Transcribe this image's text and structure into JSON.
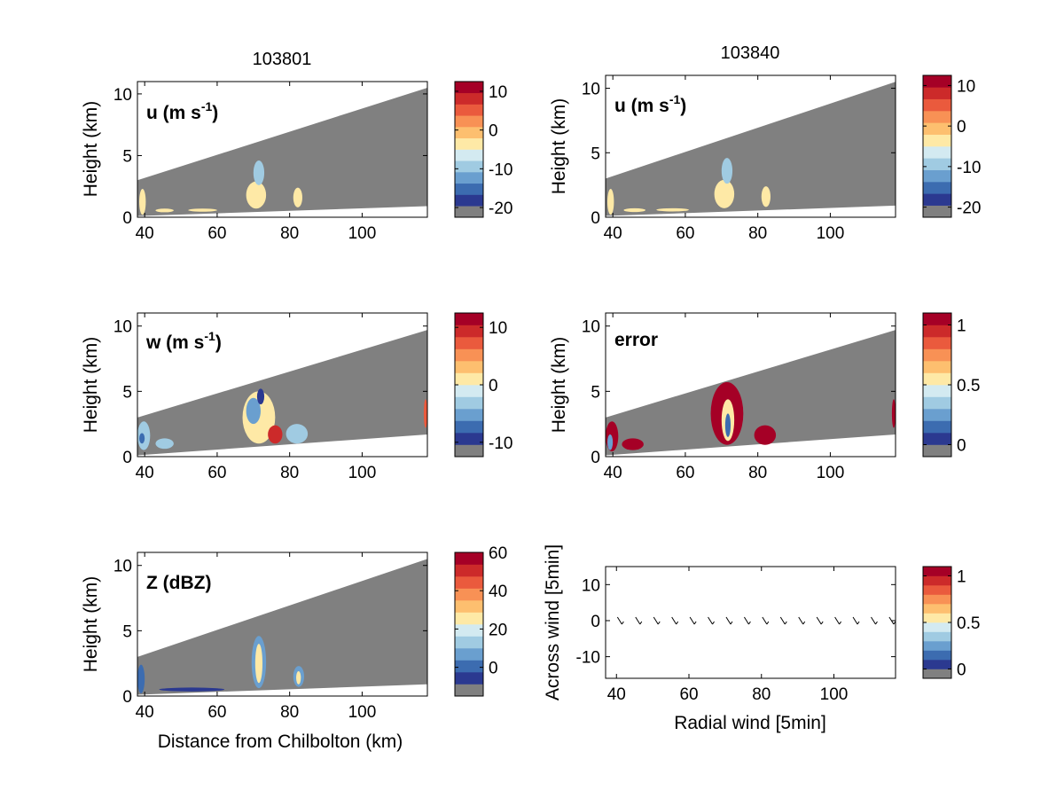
{
  "chart_data": [
    {
      "type": "heatmap",
      "title": "103801",
      "panel_label": "u (m s",
      "panel_label_sup": "-1",
      "panel_label_close": ")",
      "xlabel": "",
      "ylabel": "Height (km)",
      "xlim": [
        38,
        118
      ],
      "ylim": [
        0,
        11
      ],
      "xticks": [
        40,
        60,
        80,
        100
      ],
      "yticks": [
        0,
        5,
        10
      ],
      "beam_top": [
        [
          38,
          3.0
        ],
        [
          118,
          10.5
        ]
      ],
      "beam_bottom": [
        [
          38,
          0.1
        ],
        [
          118,
          0.9
        ]
      ],
      "colorbar": {
        "ticks": [
          10,
          0,
          -10,
          -20
        ],
        "min": -22.5,
        "max": 12.5
      },
      "echoes": [
        {
          "x": 38.5,
          "y": 0.2,
          "w": 1.8,
          "h": 2.1,
          "v": -5
        },
        {
          "x": 43,
          "y": 0.4,
          "w": 5,
          "h": 0.3,
          "v": -5
        },
        {
          "x": 52,
          "y": 0.45,
          "w": 8,
          "h": 0.25,
          "v": -5
        },
        {
          "x": 68,
          "y": 0.7,
          "w": 5.5,
          "h": 2.2,
          "v": -5
        },
        {
          "x": 70,
          "y": 2.6,
          "w": 3,
          "h": 2.0,
          "v": -8
        },
        {
          "x": 81,
          "y": 0.8,
          "w": 2.5,
          "h": 1.6,
          "v": -5
        }
      ]
    },
    {
      "type": "heatmap",
      "title": "103840",
      "panel_label": "u (m s",
      "panel_label_sup": "-1",
      "panel_label_close": ")",
      "xlabel": "",
      "ylabel": "Height (km)",
      "xlim": [
        38,
        118
      ],
      "ylim": [
        0,
        11
      ],
      "xticks": [
        40,
        60,
        80,
        100
      ],
      "yticks": [
        0,
        5,
        10
      ],
      "beam_top": [
        [
          38,
          3.0
        ],
        [
          118,
          10.5
        ]
      ],
      "beam_bottom": [
        [
          38,
          0.1
        ],
        [
          118,
          0.9
        ]
      ],
      "colorbar": {
        "ticks": [
          10,
          0,
          -10,
          -20
        ],
        "min": -22.5,
        "max": 12.5
      },
      "echoes": [
        {
          "x": 38.5,
          "y": 0.2,
          "w": 1.8,
          "h": 2.0,
          "v": -5
        },
        {
          "x": 43,
          "y": 0.4,
          "w": 6,
          "h": 0.3,
          "v": -5
        },
        {
          "x": 52,
          "y": 0.45,
          "w": 9,
          "h": 0.25,
          "v": -5
        },
        {
          "x": 68,
          "y": 0.7,
          "w": 5.5,
          "h": 2.2,
          "v": -5
        },
        {
          "x": 70,
          "y": 2.6,
          "w": 3,
          "h": 2.0,
          "v": -8
        },
        {
          "x": 81,
          "y": 0.8,
          "w": 2.5,
          "h": 1.6,
          "v": -5
        }
      ]
    },
    {
      "type": "heatmap",
      "title": "",
      "panel_label": "w (m s",
      "panel_label_sup": "-1",
      "panel_label_close": ")",
      "xlabel": "",
      "ylabel": "Height (km)",
      "xlim": [
        38,
        118
      ],
      "ylim": [
        0,
        11
      ],
      "xticks": [
        40,
        60,
        80,
        100
      ],
      "yticks": [
        0,
        5,
        10
      ],
      "beam_top": [
        [
          38,
          3.0
        ],
        [
          118,
          9.7
        ]
      ],
      "beam_bottom": [
        [
          38,
          0.1
        ],
        [
          118,
          1.7
        ]
      ],
      "colorbar": {
        "ticks": [
          10,
          0,
          -10
        ],
        "min": -12.5,
        "max": 12.5
      },
      "echoes": [
        {
          "x": 38,
          "y": 0.5,
          "w": 3.5,
          "h": 2.2,
          "v": -3
        },
        {
          "x": 38.5,
          "y": 1.0,
          "w": 1.5,
          "h": 0.8,
          "v": -8
        },
        {
          "x": 43,
          "y": 0.6,
          "w": 5,
          "h": 0.8,
          "v": -4
        },
        {
          "x": 67,
          "y": 1.0,
          "w": 9,
          "h": 4.0,
          "v": 2
        },
        {
          "x": 68,
          "y": 2.5,
          "w": 4,
          "h": 2.0,
          "v": -5
        },
        {
          "x": 71,
          "y": 4.0,
          "w": 2,
          "h": 1.2,
          "v": -10
        },
        {
          "x": 74,
          "y": 1.0,
          "w": 4,
          "h": 1.4,
          "v": 9
        },
        {
          "x": 79,
          "y": 1.0,
          "w": 6,
          "h": 1.5,
          "v": -3
        },
        {
          "x": 117,
          "y": 2.2,
          "w": 1,
          "h": 2.2,
          "v": 8
        }
      ]
    },
    {
      "type": "heatmap",
      "title": "",
      "panel_label": "error",
      "panel_label_sup": "",
      "panel_label_close": "",
      "xlabel": "",
      "ylabel": "Height (km)",
      "xlim": [
        38,
        118
      ],
      "ylim": [
        0,
        11
      ],
      "xticks": [
        40,
        60,
        80,
        100
      ],
      "yticks": [
        0,
        5,
        10
      ],
      "beam_top": [
        [
          38,
          3.0
        ],
        [
          118,
          9.7
        ]
      ],
      "beam_bottom": [
        [
          38,
          0.1
        ],
        [
          118,
          1.7
        ]
      ],
      "colorbar": {
        "ticks": [
          1,
          0.5,
          0
        ],
        "min": -0.1,
        "max": 1.1
      },
      "echoes": [
        {
          "x": 38,
          "y": 0.4,
          "w": 3.5,
          "h": 2.3,
          "v": 1.05
        },
        {
          "x": 38.5,
          "y": 0.5,
          "w": 1.5,
          "h": 1.2,
          "v": 0.2
        },
        {
          "x": 42.5,
          "y": 0.5,
          "w": 6,
          "h": 0.9,
          "v": 1.05
        },
        {
          "x": 67,
          "y": 0.9,
          "w": 9,
          "h": 4.8,
          "v": 1.05
        },
        {
          "x": 70,
          "y": 1.2,
          "w": 3.5,
          "h": 3.2,
          "v": 0.55
        },
        {
          "x": 71,
          "y": 1.5,
          "w": 1.5,
          "h": 1.8,
          "v": 0.15
        },
        {
          "x": 79,
          "y": 0.9,
          "w": 6,
          "h": 1.5,
          "v": 1.05
        },
        {
          "x": 117,
          "y": 2.2,
          "w": 1,
          "h": 2.2,
          "v": 1.05
        }
      ]
    },
    {
      "type": "heatmap",
      "title": "",
      "panel_label": "Z (dBZ)",
      "panel_label_sup": "",
      "panel_label_close": "",
      "xlabel": "Distance from Chilbolton (km)",
      "ylabel": "Height (km)",
      "xlim": [
        38,
        118
      ],
      "ylim": [
        0,
        11
      ],
      "xticks": [
        40,
        60,
        80,
        100
      ],
      "yticks": [
        0,
        5,
        10
      ],
      "beam_top": [
        [
          38,
          3.0
        ],
        [
          118,
          10.5
        ]
      ],
      "beam_bottom": [
        [
          38,
          0.1
        ],
        [
          118,
          0.9
        ]
      ],
      "colorbar": {
        "ticks": [
          60,
          40,
          20,
          0
        ],
        "min": -15,
        "max": 60
      },
      "echoes": [
        {
          "x": 38,
          "y": 0.2,
          "w": 2,
          "h": 2.2,
          "v": 0
        },
        {
          "x": 44,
          "y": 0.35,
          "w": 18,
          "h": 0.3,
          "v": -5
        },
        {
          "x": 69.5,
          "y": 0.6,
          "w": 4,
          "h": 4.0,
          "v": 5
        },
        {
          "x": 70.5,
          "y": 1.0,
          "w": 2,
          "h": 3.0,
          "v": 28
        },
        {
          "x": 81,
          "y": 0.7,
          "w": 3,
          "h": 1.6,
          "v": 5
        },
        {
          "x": 81.8,
          "y": 0.9,
          "w": 1.3,
          "h": 1.0,
          "v": 25
        }
      ]
    },
    {
      "type": "scatter",
      "title": "",
      "panel_label": "",
      "panel_label_sup": "",
      "panel_label_close": "",
      "xlabel": "Radial wind [5min]",
      "ylabel": "Across wind [5min]",
      "xlim": [
        37,
        117
      ],
      "ylim": [
        -16,
        15
      ],
      "xticks": [
        40,
        60,
        80,
        100
      ],
      "yticks": [
        10,
        0,
        -10
      ],
      "colorbar": {
        "ticks": [
          1,
          0.5,
          0
        ],
        "min": -0.1,
        "max": 1.1
      },
      "arrows_x": [
        41,
        46,
        51,
        56,
        61,
        66,
        71,
        76,
        81,
        86,
        91,
        96,
        101,
        106,
        111,
        116
      ],
      "arrows_y": [
        0,
        0,
        0,
        0,
        0,
        0,
        0,
        0,
        0,
        0,
        0,
        0,
        0,
        0,
        0,
        0
      ]
    }
  ],
  "colormap": [
    "#808080",
    "#2b3990",
    "#3c6cb0",
    "#6a9fcf",
    "#a0cbe2",
    "#d3eaf1",
    "#fee9a6",
    "#fdbf6f",
    "#f89155",
    "#ea5a3d",
    "#cc2a2a",
    "#a50026"
  ]
}
